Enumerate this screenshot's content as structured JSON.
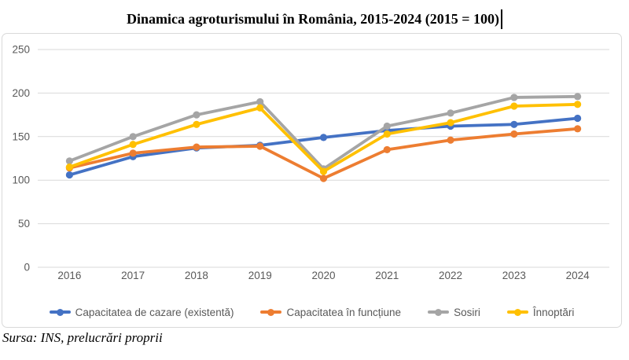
{
  "chart_data": {
    "type": "line",
    "title": "Dinamica agroturismului în România, 2015-2024 (2015 = 100)",
    "categories": [
      "2016",
      "2017",
      "2018",
      "2019",
      "2020",
      "2021",
      "2022",
      "2023",
      "2024"
    ],
    "series": [
      {
        "name": "Capacitatea de cazare (existentă)",
        "color": "#4472C4",
        "values": [
          106,
          127,
          137,
          140,
          149,
          157,
          162,
          164,
          171
        ]
      },
      {
        "name": "Capacitatea în funcțiune",
        "color": "#ED7D31",
        "values": [
          114,
          131,
          138,
          139,
          102,
          135,
          146,
          153,
          159
        ]
      },
      {
        "name": "Sosiri",
        "color": "#A5A5A5",
        "values": [
          122,
          150,
          175,
          190,
          113,
          162,
          177,
          195,
          196
        ]
      },
      {
        "name": "Înnoptări",
        "color": "#FFC000",
        "values": [
          115,
          141,
          164,
          183,
          110,
          153,
          166,
          185,
          187
        ]
      }
    ],
    "ylim": [
      0,
      250
    ],
    "y_ticks": [
      0,
      50,
      100,
      150,
      200,
      250
    ],
    "grid": true,
    "grid_color": "#D9D9D9",
    "axis_text_color": "#595959",
    "legend_position": "bottom"
  },
  "source_note": "Sursa: INS, prelucrări proprii"
}
